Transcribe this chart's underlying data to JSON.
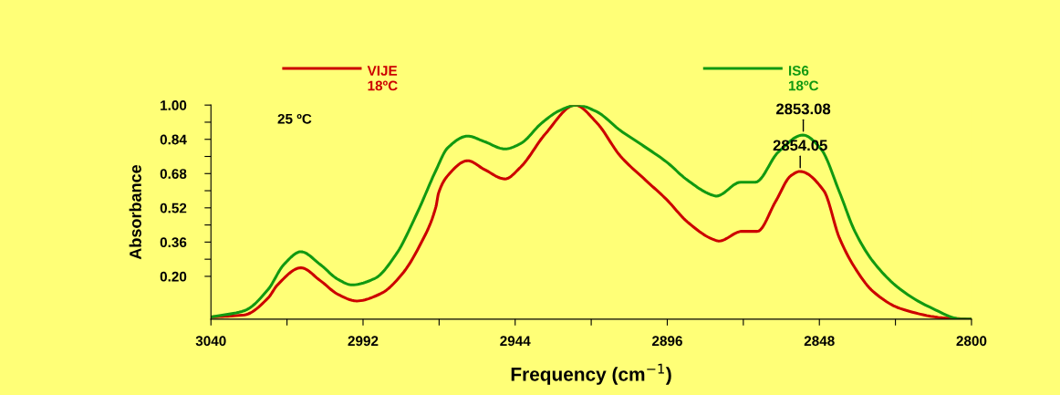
{
  "chart_data": {
    "type": "line",
    "xlabel": "Frequency (cm$^{−1}$)",
    "ylabel": "Absorbance",
    "xlim": [
      3040,
      2800
    ],
    "xticks": [
      3040,
      {
        "value": 3016,
        "label": null
      },
      2992,
      {
        "value": 2968,
        "label": null
      },
      2944,
      {
        "value": 2920,
        "label": null
      },
      2896,
      {
        "value": 2872,
        "label": null
      },
      2848,
      {
        "value": 2824,
        "label": null
      },
      2800
    ],
    "ylim": [
      0,
      1.0
    ],
    "yticks": [
      {
        "value": 0.2,
        "label": "0.20"
      },
      {
        "value": 0.28,
        "label": null
      },
      {
        "value": 0.36,
        "label": "0.36"
      },
      {
        "value": 0.44,
        "label": null
      },
      {
        "value": 0.52,
        "label": "0.52"
      },
      {
        "value": 0.6,
        "label": null
      },
      {
        "value": 0.68,
        "label": "0.68"
      },
      {
        "value": 0.76,
        "label": null
      },
      {
        "value": 0.84,
        "label": "0.84"
      },
      {
        "value": 0.92,
        "label": null
      },
      {
        "value": 1.0,
        "label": "1.00"
      }
    ],
    "grid": false,
    "legend": "top",
    "marker": "none",
    "line_style": "solid",
    "series": [
      {
        "name": "VIJE\n18ºC",
        "color": "#cc0000",
        "x": [
          3040,
          3029.4,
          3021.9,
          3019,
          3011.6,
          3005.5,
          2999.8,
          2994.0,
          2986.3,
          2979.7,
          2973.9,
          2969.0,
          2968.2,
          2965.3,
          2959.0,
          2953.8,
          2947.2,
          2942.3,
          2934.5,
          2925.1,
          2918.4,
          2910.7,
          2902.9,
          2896.3,
          2889.7,
          2881.9,
          2879.7,
          2872.5,
          2867.6,
          2861.8,
          2857,
          2854.1,
          2846.6,
          2841.7,
          2836.8,
          2831.1,
          2822.5,
          2808.1,
          2800
        ],
        "values": [
          0.01,
          0.02,
          0.1,
          0.16,
          0.24,
          0.18,
          0.115,
          0.085,
          0.12,
          0.21,
          0.35,
          0.525,
          0.587,
          0.67,
          0.74,
          0.7,
          0.655,
          0.71,
          0.865,
          1.0,
          0.92,
          0.76,
          0.65,
          0.56,
          0.455,
          0.375,
          0.365,
          0.41,
          0.41,
          0.55,
          0.67,
          0.69,
          0.6,
          0.38,
          0.24,
          0.13,
          0.05,
          0.005,
          0.0
        ]
      },
      {
        "name": "IS6\n18ºC",
        "color": "#119911",
        "x": [
          3040,
          3029.4,
          3021.9,
          3017,
          3011.6,
          3005.5,
          2999.8,
          2995.5,
          2988.3,
          2981.7,
          2974.8,
          2969,
          2965.3,
          2959,
          2953.8,
          2947.2,
          2942.3,
          2935.7,
          2929.9,
          2924.5,
          2918.4,
          2910.7,
          2904.1,
          2896.3,
          2889.7,
          2881.9,
          2880.5,
          2872.8,
          2868.2,
          2861,
          2853.2,
          2847.5,
          2841.7,
          2836.8,
          2831.1,
          2822.5,
          2813,
          2802.9,
          2800
        ],
        "values": [
          0.01,
          0.04,
          0.14,
          0.255,
          0.315,
          0.255,
          0.185,
          0.16,
          0.19,
          0.3,
          0.5,
          0.695,
          0.8,
          0.855,
          0.83,
          0.795,
          0.82,
          0.915,
          0.975,
          1.0,
          0.97,
          0.88,
          0.815,
          0.735,
          0.65,
          0.58,
          0.575,
          0.64,
          0.64,
          0.78,
          0.86,
          0.795,
          0.595,
          0.41,
          0.27,
          0.14,
          0.055,
          0.0,
          0.0
        ]
      }
    ],
    "annotations": [
      "25 ºC",
      {
        "text": "2853.08",
        "x": 2853.08,
        "y": 0.86
      },
      {
        "text": "2854.05",
        "x": 2854.05,
        "y": 0.69
      }
    ]
  }
}
